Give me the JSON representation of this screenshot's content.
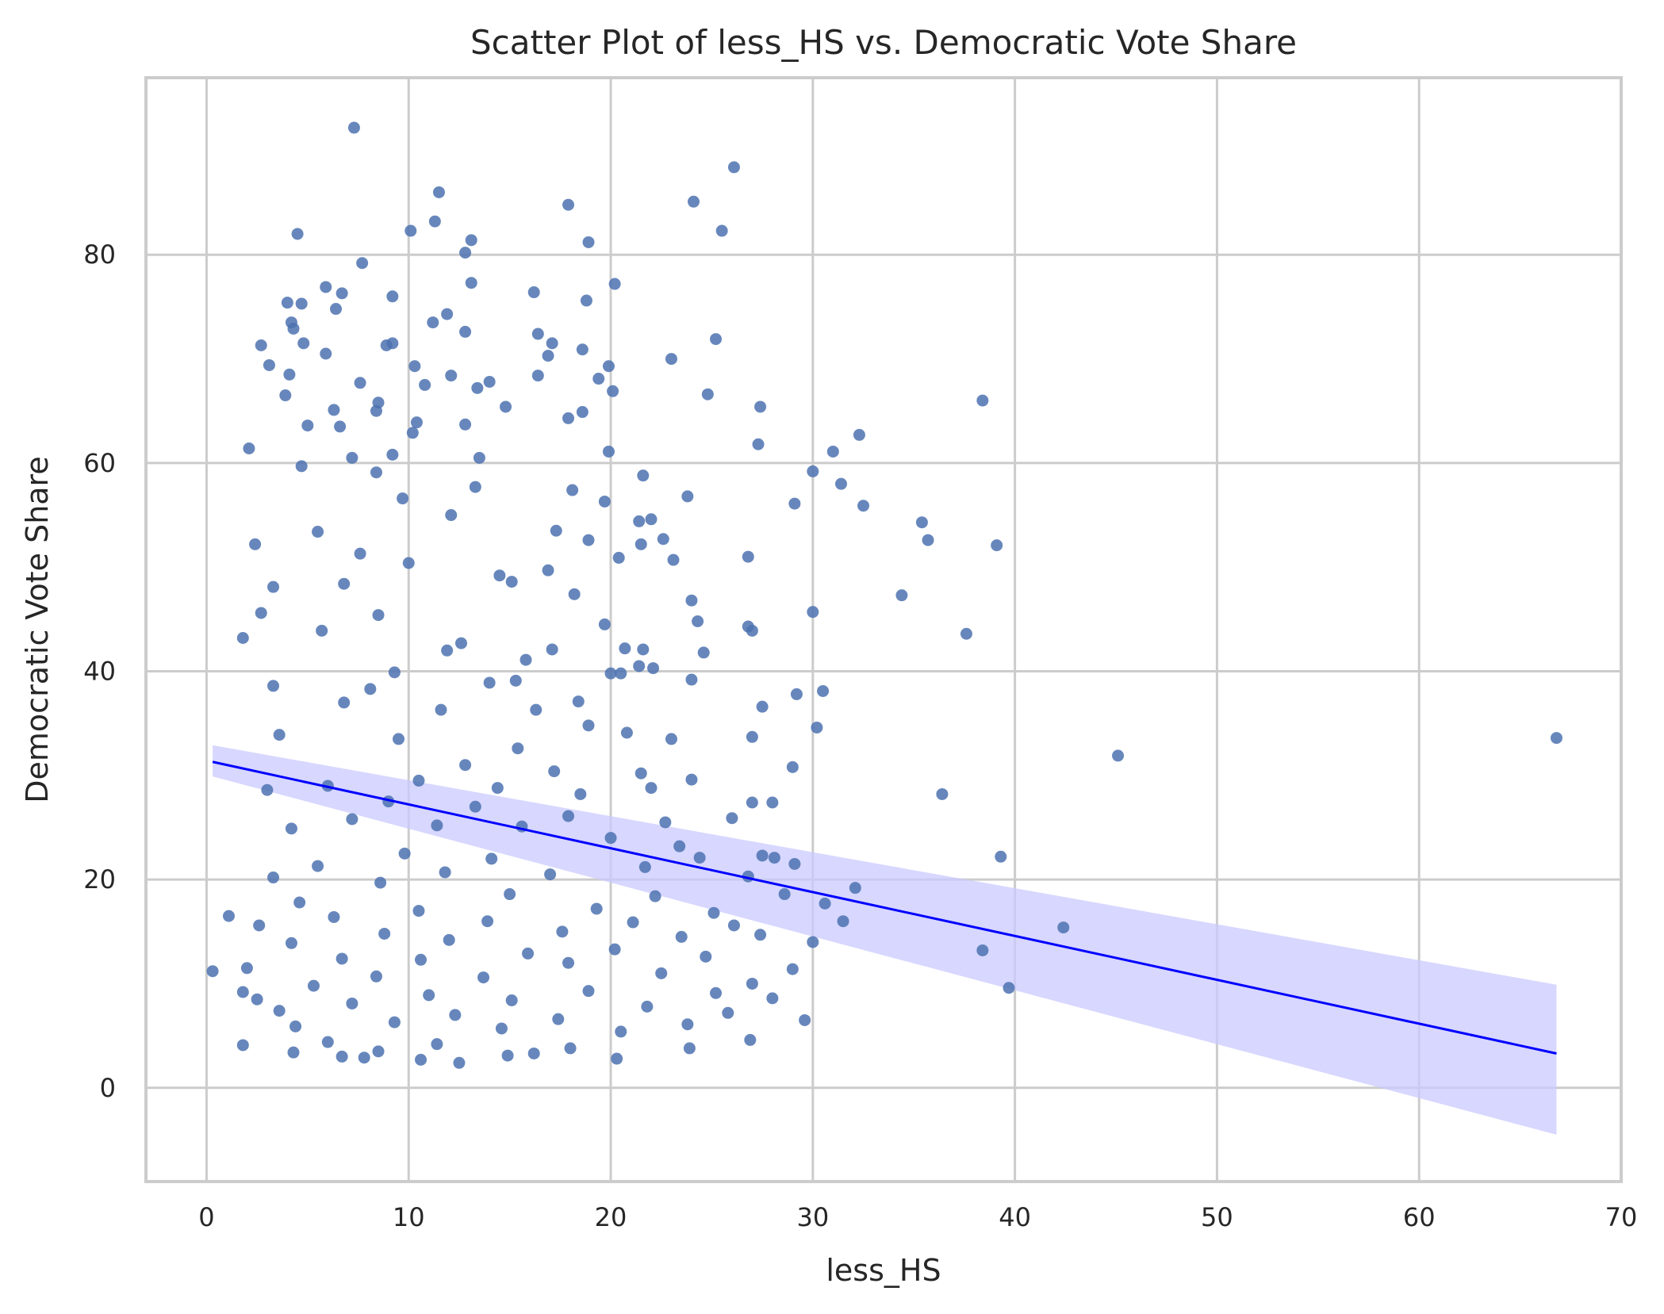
{
  "chart_data": {
    "type": "scatter",
    "title": "Scatter Plot of less_HS vs. Democratic Vote Share",
    "xlabel": "less_HS",
    "ylabel": "Democratic Vote Share",
    "xlim": [
      -3,
      70
    ],
    "ylim": [
      -9,
      97
    ],
    "xticks": [
      0,
      10,
      20,
      30,
      40,
      50,
      60,
      70
    ],
    "yticks": [
      0,
      20,
      40,
      60,
      80
    ],
    "grid": true,
    "legend": "none",
    "colors": {
      "points": "#4c72b0",
      "regression": "#0000ff",
      "confidence_band": "#c9c9ff"
    },
    "regression": {
      "x": [
        0.3,
        66.8
      ],
      "y": [
        31.3,
        3.3
      ]
    },
    "confidence_band": {
      "x": [
        0.3,
        66.8
      ],
      "upper": [
        32.9,
        9.9
      ],
      "lower": [
        29.9,
        -4.5
      ]
    },
    "points": [
      [
        7.3,
        92.2
      ],
      [
        26.1,
        88.4
      ],
      [
        11.5,
        86.0
      ],
      [
        24.1,
        85.1
      ],
      [
        17.9,
        84.8
      ],
      [
        11.3,
        83.2
      ],
      [
        10.1,
        82.3
      ],
      [
        25.5,
        82.3
      ],
      [
        4.5,
        82.0
      ],
      [
        13.1,
        81.4
      ],
      [
        18.9,
        81.2
      ],
      [
        12.8,
        80.2
      ],
      [
        7.7,
        79.2
      ],
      [
        13.1,
        77.3
      ],
      [
        20.2,
        77.2
      ],
      [
        5.9,
        76.9
      ],
      [
        16.2,
        76.4
      ],
      [
        6.7,
        76.3
      ],
      [
        9.2,
        76.0
      ],
      [
        18.8,
        75.6
      ],
      [
        4.0,
        75.4
      ],
      [
        4.7,
        75.3
      ],
      [
        6.4,
        74.8
      ],
      [
        11.9,
        74.3
      ],
      [
        11.2,
        73.5
      ],
      [
        4.2,
        73.5
      ],
      [
        4.3,
        72.9
      ],
      [
        12.8,
        72.6
      ],
      [
        16.4,
        72.4
      ],
      [
        25.2,
        71.9
      ],
      [
        17.1,
        71.5
      ],
      [
        9.2,
        71.5
      ],
      [
        2.7,
        71.3
      ],
      [
        4.8,
        71.5
      ],
      [
        8.9,
        71.3
      ],
      [
        18.6,
        70.9
      ],
      [
        5.9,
        70.5
      ],
      [
        16.9,
        70.3
      ],
      [
        23.0,
        70.0
      ],
      [
        3.1,
        69.4
      ],
      [
        10.3,
        69.3
      ],
      [
        19.9,
        69.3
      ],
      [
        4.1,
        68.5
      ],
      [
        12.1,
        68.4
      ],
      [
        16.4,
        68.4
      ],
      [
        14.0,
        67.8
      ],
      [
        19.4,
        68.1
      ],
      [
        10.8,
        67.5
      ],
      [
        7.6,
        67.7
      ],
      [
        20.1,
        66.9
      ],
      [
        24.8,
        66.6
      ],
      [
        38.4,
        66.0
      ],
      [
        13.4,
        67.2
      ],
      [
        8.5,
        65.8
      ],
      [
        17.9,
        64.3
      ],
      [
        14.8,
        65.4
      ],
      [
        27.4,
        65.4
      ],
      [
        8.4,
        65.0
      ],
      [
        10.4,
        63.9
      ],
      [
        6.3,
        65.1
      ],
      [
        18.6,
        64.9
      ],
      [
        3.9,
        66.5
      ],
      [
        12.8,
        63.7
      ],
      [
        10.2,
        62.9
      ],
      [
        32.3,
        62.7
      ],
      [
        6.6,
        63.5
      ],
      [
        5.0,
        63.6
      ],
      [
        27.3,
        61.8
      ],
      [
        31.0,
        61.1
      ],
      [
        19.9,
        61.1
      ],
      [
        2.1,
        61.4
      ],
      [
        7.2,
        60.5
      ],
      [
        13.5,
        60.5
      ],
      [
        9.2,
        60.8
      ],
      [
        30.0,
        59.2
      ],
      [
        21.6,
        58.8
      ],
      [
        4.7,
        59.7
      ],
      [
        8.4,
        59.1
      ],
      [
        31.4,
        58.0
      ],
      [
        13.3,
        57.7
      ],
      [
        18.1,
        57.4
      ],
      [
        23.8,
        56.8
      ],
      [
        29.1,
        56.1
      ],
      [
        32.5,
        55.9
      ],
      [
        19.7,
        56.3
      ],
      [
        9.7,
        56.6
      ],
      [
        35.4,
        54.3
      ],
      [
        21.4,
        54.4
      ],
      [
        22.0,
        54.6
      ],
      [
        12.1,
        55.0
      ],
      [
        35.7,
        52.6
      ],
      [
        5.5,
        53.4
      ],
      [
        17.3,
        53.5
      ],
      [
        2.4,
        52.2
      ],
      [
        22.6,
        52.7
      ],
      [
        39.1,
        52.1
      ],
      [
        18.9,
        52.6
      ],
      [
        21.5,
        52.2
      ],
      [
        23.1,
        50.7
      ],
      [
        26.8,
        51.0
      ],
      [
        20.4,
        50.9
      ],
      [
        7.6,
        51.3
      ],
      [
        10.0,
        50.4
      ],
      [
        14.5,
        49.2
      ],
      [
        16.9,
        49.7
      ],
      [
        18.2,
        47.4
      ],
      [
        34.4,
        47.3
      ],
      [
        6.8,
        48.4
      ],
      [
        3.3,
        48.1
      ],
      [
        15.1,
        48.6
      ],
      [
        24.0,
        46.8
      ],
      [
        30.0,
        45.7
      ],
      [
        2.7,
        45.6
      ],
      [
        8.5,
        45.4
      ],
      [
        19.7,
        44.5
      ],
      [
        26.8,
        44.3
      ],
      [
        24.3,
        44.8
      ],
      [
        27.0,
        43.9
      ],
      [
        37.6,
        43.6
      ],
      [
        1.8,
        43.2
      ],
      [
        5.7,
        43.9
      ],
      [
        12.6,
        42.7
      ],
      [
        17.1,
        42.1
      ],
      [
        21.6,
        42.1
      ],
      [
        20.7,
        42.2
      ],
      [
        11.9,
        42.0
      ],
      [
        24.6,
        41.8
      ],
      [
        15.8,
        41.1
      ],
      [
        21.4,
        40.5
      ],
      [
        22.1,
        40.3
      ],
      [
        20.0,
        39.8
      ],
      [
        20.5,
        39.8
      ],
      [
        9.3,
        39.9
      ],
      [
        24.0,
        39.2
      ],
      [
        15.3,
        39.1
      ],
      [
        29.2,
        37.8
      ],
      [
        30.5,
        38.1
      ],
      [
        3.3,
        38.6
      ],
      [
        8.1,
        38.3
      ],
      [
        14.0,
        38.9
      ],
      [
        18.4,
        37.1
      ],
      [
        27.5,
        36.6
      ],
      [
        6.8,
        37.0
      ],
      [
        11.6,
        36.3
      ],
      [
        16.3,
        36.3
      ],
      [
        18.9,
        34.8
      ],
      [
        20.8,
        34.1
      ],
      [
        30.2,
        34.6
      ],
      [
        27.0,
        33.7
      ],
      [
        66.8,
        33.6
      ],
      [
        3.6,
        33.9
      ],
      [
        9.5,
        33.5
      ],
      [
        23.0,
        33.5
      ],
      [
        15.4,
        32.6
      ],
      [
        12.8,
        31.0
      ],
      [
        45.1,
        31.9
      ],
      [
        17.2,
        30.4
      ],
      [
        21.5,
        30.2
      ],
      [
        29.0,
        30.8
      ],
      [
        24.0,
        29.6
      ],
      [
        6.0,
        29.0
      ],
      [
        10.5,
        29.5
      ],
      [
        14.4,
        28.8
      ],
      [
        3.0,
        28.6
      ],
      [
        36.4,
        28.2
      ],
      [
        22.0,
        28.8
      ],
      [
        18.5,
        28.2
      ],
      [
        27.0,
        27.4
      ],
      [
        28.0,
        27.4
      ],
      [
        9.0,
        27.5
      ],
      [
        13.3,
        27.0
      ],
      [
        17.9,
        26.1
      ],
      [
        26.0,
        25.9
      ],
      [
        7.2,
        25.8
      ],
      [
        11.4,
        25.2
      ],
      [
        15.6,
        25.1
      ],
      [
        22.7,
        25.5
      ],
      [
        4.2,
        24.9
      ],
      [
        20.0,
        24.0
      ],
      [
        23.4,
        23.2
      ],
      [
        27.5,
        22.3
      ],
      [
        28.1,
        22.1
      ],
      [
        39.3,
        22.2
      ],
      [
        9.8,
        22.5
      ],
      [
        14.1,
        22.0
      ],
      [
        24.4,
        22.1
      ],
      [
        29.1,
        21.5
      ],
      [
        5.5,
        21.3
      ],
      [
        17.0,
        20.5
      ],
      [
        21.7,
        21.2
      ],
      [
        11.8,
        20.7
      ],
      [
        26.8,
        20.3
      ],
      [
        3.3,
        20.2
      ],
      [
        8.6,
        19.7
      ],
      [
        32.1,
        19.2
      ],
      [
        15.0,
        18.6
      ],
      [
        22.2,
        18.4
      ],
      [
        28.6,
        18.6
      ],
      [
        4.6,
        17.8
      ],
      [
        30.6,
        17.7
      ],
      [
        19.3,
        17.2
      ],
      [
        10.5,
        17.0
      ],
      [
        25.1,
        16.8
      ],
      [
        1.1,
        16.5
      ],
      [
        6.3,
        16.4
      ],
      [
        13.9,
        16.0
      ],
      [
        31.5,
        16.0
      ],
      [
        21.1,
        15.9
      ],
      [
        42.4,
        15.4
      ],
      [
        2.6,
        15.6
      ],
      [
        26.1,
        15.6
      ],
      [
        17.6,
        15.0
      ],
      [
        8.8,
        14.8
      ],
      [
        23.5,
        14.5
      ],
      [
        27.4,
        14.7
      ],
      [
        12.0,
        14.2
      ],
      [
        30.0,
        14.0
      ],
      [
        4.2,
        13.9
      ],
      [
        20.2,
        13.3
      ],
      [
        38.4,
        13.2
      ],
      [
        15.9,
        12.9
      ],
      [
        24.7,
        12.6
      ],
      [
        6.7,
        12.4
      ],
      [
        10.6,
        12.3
      ],
      [
        17.9,
        12.0
      ],
      [
        2.0,
        11.5
      ],
      [
        29.0,
        11.4
      ],
      [
        0.3,
        11.2
      ],
      [
        22.5,
        11.0
      ],
      [
        8.4,
        10.7
      ],
      [
        13.7,
        10.6
      ],
      [
        27.0,
        10.0
      ],
      [
        39.7,
        9.6
      ],
      [
        5.3,
        9.8
      ],
      [
        18.9,
        9.3
      ],
      [
        1.8,
        9.2
      ],
      [
        25.2,
        9.1
      ],
      [
        11.0,
        8.9
      ],
      [
        28.0,
        8.6
      ],
      [
        2.5,
        8.5
      ],
      [
        15.1,
        8.4
      ],
      [
        7.2,
        8.1
      ],
      [
        21.8,
        7.8
      ],
      [
        3.6,
        7.4
      ],
      [
        25.8,
        7.2
      ],
      [
        12.3,
        7.0
      ],
      [
        17.4,
        6.6
      ],
      [
        29.6,
        6.5
      ],
      [
        9.3,
        6.3
      ],
      [
        23.8,
        6.1
      ],
      [
        4.4,
        5.9
      ],
      [
        14.6,
        5.7
      ],
      [
        20.5,
        5.4
      ],
      [
        26.9,
        4.6
      ],
      [
        6.0,
        4.4
      ],
      [
        11.4,
        4.2
      ],
      [
        1.8,
        4.1
      ],
      [
        18.0,
        3.8
      ],
      [
        23.9,
        3.8
      ],
      [
        8.5,
        3.5
      ],
      [
        4.3,
        3.4
      ],
      [
        14.9,
        3.1
      ],
      [
        20.3,
        2.8
      ],
      [
        12.5,
        2.4
      ],
      [
        7.8,
        2.9
      ],
      [
        10.6,
        2.7
      ],
      [
        6.7,
        3.0
      ],
      [
        16.2,
        3.3
      ]
    ]
  }
}
